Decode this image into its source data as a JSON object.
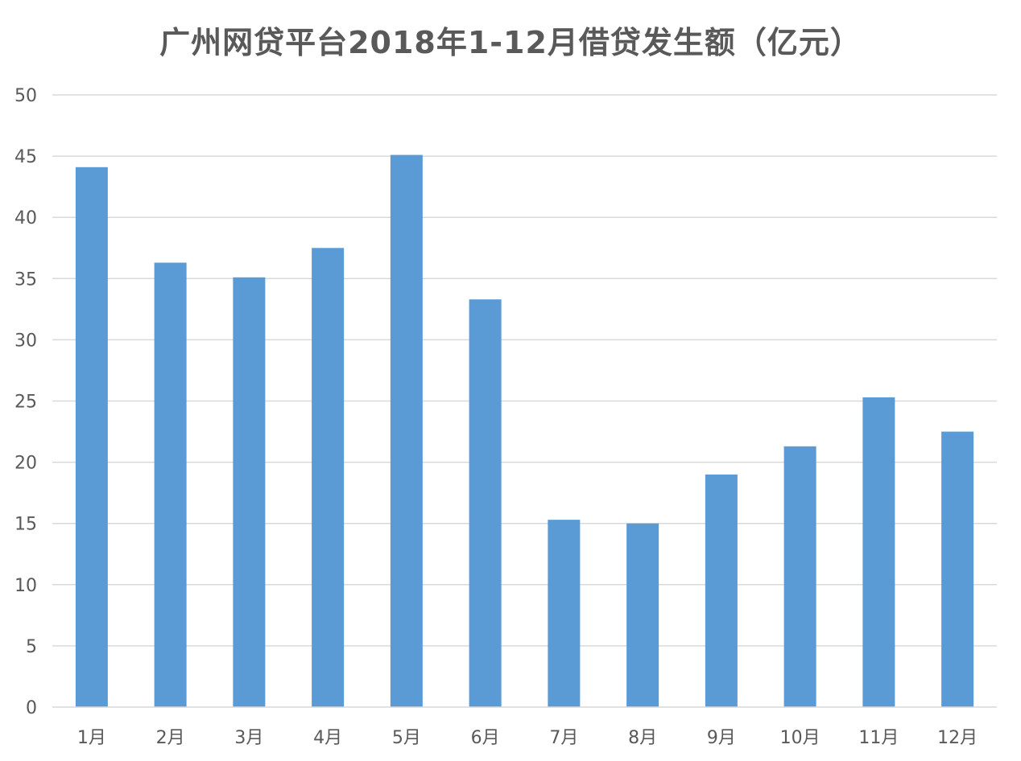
{
  "chart_data": {
    "type": "bar",
    "title": "广州网贷平台2018年1-12月借贷发生额（亿元）",
    "xlabel": "",
    "ylabel": "",
    "categories": [
      "1月",
      "2月",
      "3月",
      "4月",
      "5月",
      "6月",
      "7月",
      "8月",
      "9月",
      "10月",
      "11月",
      "12月"
    ],
    "values": [
      44.1,
      36.3,
      35.1,
      37.5,
      45.1,
      33.3,
      15.3,
      15.0,
      19.0,
      21.3,
      25.3,
      22.5
    ],
    "ylim": [
      0,
      50
    ],
    "yticks": [
      "0",
      "5",
      "10",
      "15",
      "20",
      "25",
      "30",
      "35",
      "40",
      "45",
      "50"
    ],
    "grid": true,
    "legend": "none",
    "colors": {
      "bar": "#5b9bd5",
      "grid": "#d9d9d9",
      "text": "#595959"
    }
  }
}
